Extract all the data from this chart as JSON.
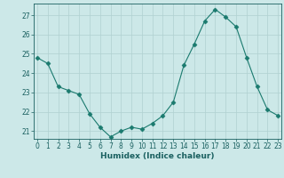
{
  "x": [
    0,
    1,
    2,
    3,
    4,
    5,
    6,
    7,
    8,
    9,
    10,
    11,
    12,
    13,
    14,
    15,
    16,
    17,
    18,
    19,
    20,
    21,
    22,
    23
  ],
  "y": [
    24.8,
    24.5,
    23.3,
    23.1,
    22.9,
    21.9,
    21.2,
    20.7,
    21.0,
    21.2,
    21.1,
    21.4,
    21.8,
    22.5,
    24.4,
    25.5,
    26.7,
    27.3,
    26.9,
    26.4,
    24.8,
    23.3,
    22.1,
    21.8
  ],
  "line_color": "#1a7a6e",
  "marker": "D",
  "marker_size": 2.5,
  "bg_color": "#cce8e8",
  "grid_color": "#b0d0d0",
  "xlabel": "Humidex (Indice chaleur)",
  "yticks": [
    21,
    22,
    23,
    24,
    25,
    26,
    27
  ],
  "xticks": [
    0,
    1,
    2,
    3,
    4,
    5,
    6,
    7,
    8,
    9,
    10,
    11,
    12,
    13,
    14,
    15,
    16,
    17,
    18,
    19,
    20,
    21,
    22,
    23
  ],
  "tick_color": "#1a6060",
  "label_fontsize": 6.5,
  "tick_fontsize": 5.5,
  "xlim_left": -0.3,
  "xlim_right": 23.3,
  "ylim_bottom": 20.6,
  "ylim_top": 27.6
}
